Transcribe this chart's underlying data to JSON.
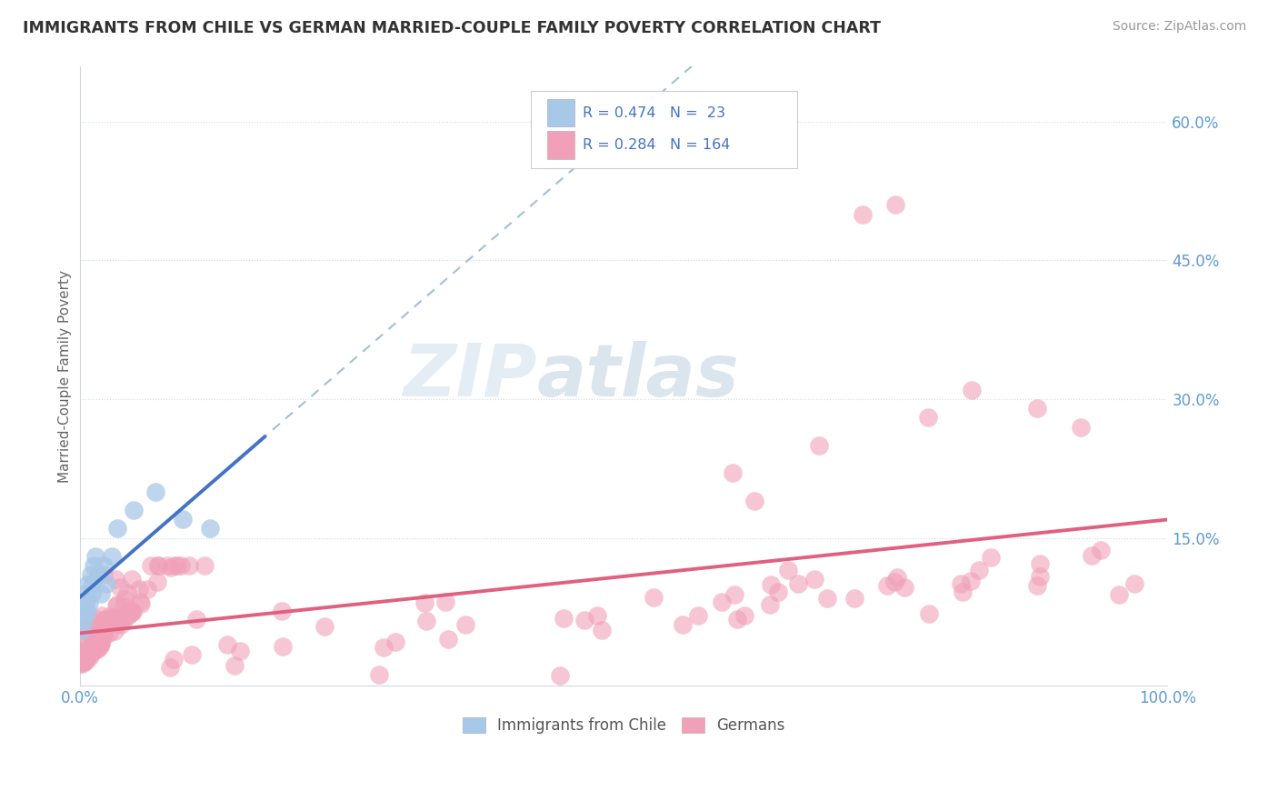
{
  "title": "IMMIGRANTS FROM CHILE VS GERMAN MARRIED-COUPLE FAMILY POVERTY CORRELATION CHART",
  "source": "Source: ZipAtlas.com",
  "ylabel": "Married-Couple Family Poverty",
  "xlim": [
    0,
    1.0
  ],
  "ylim": [
    -0.01,
    0.66
  ],
  "ytick_positions": [
    0.15,
    0.3,
    0.45,
    0.6
  ],
  "ytick_labels": [
    "15.0%",
    "30.0%",
    "45.0%",
    "60.0%"
  ],
  "legend_r1": "R = 0.474",
  "legend_n1": "N =  23",
  "legend_r2": "R = 0.284",
  "legend_n2": "N = 164",
  "legend_label1": "Immigrants from Chile",
  "legend_label2": "Germans",
  "color_chile": "#a8c8e8",
  "color_german": "#f0a0b8",
  "color_chile_line": "#4472c4",
  "color_german_line": "#e06080",
  "color_dashed": "#a0c0d8",
  "watermark_zip": "ZIP",
  "watermark_atlas": "atlas",
  "grid_color": "#d0d8e0",
  "spine_color": "#d0d8e0"
}
